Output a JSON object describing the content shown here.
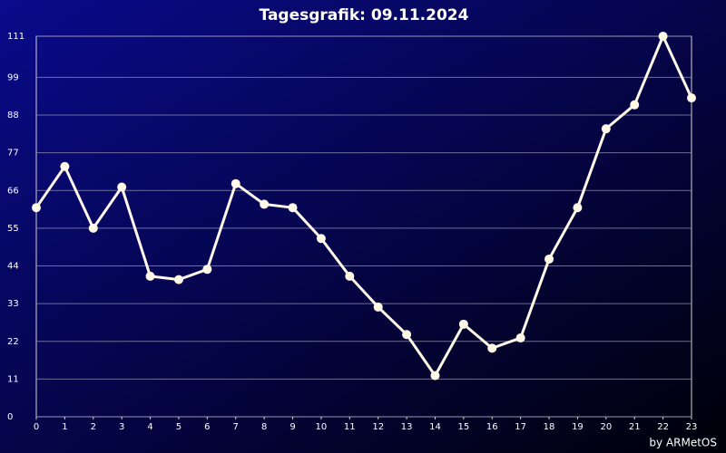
{
  "chart_data": {
    "type": "line",
    "title": "Tagesgrafik: 09.11.2024",
    "footer": "by ARMetOS",
    "x": [
      0,
      1,
      2,
      3,
      4,
      5,
      6,
      7,
      8,
      9,
      10,
      11,
      12,
      13,
      14,
      15,
      16,
      17,
      18,
      19,
      20,
      21,
      22,
      23
    ],
    "series": [
      {
        "color": "#fff8e7",
        "values": [
          61,
          73,
          55,
          67,
          41,
          40,
          43,
          68,
          62,
          61,
          52,
          41,
          32,
          24,
          12,
          27,
          20,
          23,
          46,
          61,
          84,
          91,
          111,
          93
        ]
      }
    ],
    "xlim": [
      0,
      23
    ],
    "xticks": [
      0,
      1,
      2,
      3,
      4,
      5,
      6,
      7,
      8,
      9,
      10,
      11,
      12,
      13,
      14,
      15,
      16,
      17,
      18,
      19,
      20,
      21,
      22,
      23
    ],
    "ylim": [
      0,
      111
    ],
    "yticks": [
      0,
      11,
      22,
      33,
      44,
      55,
      66,
      77,
      88,
      99,
      111
    ],
    "grid": true
  }
}
